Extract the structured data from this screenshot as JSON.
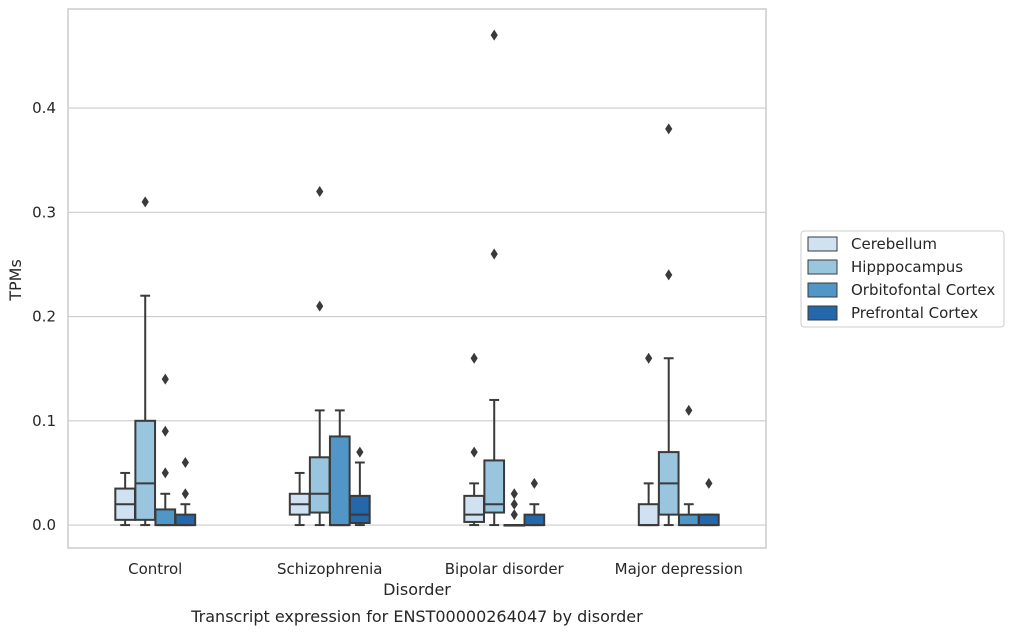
{
  "caption": "Transcript expression for ENST00000264047 by disorder",
  "chart_data": {
    "type": "box",
    "xlabel": "Disorder",
    "ylabel": "TPMs",
    "ylim": [
      -0.022,
      0.495
    ],
    "yticks": [
      0.0,
      0.1,
      0.2,
      0.3,
      0.4
    ],
    "ytick_labels": [
      "0.0",
      "0.1",
      "0.2",
      "0.3",
      "0.4"
    ],
    "grid": "horizontal",
    "legend_position": "outside right",
    "categories": [
      "Control",
      "Schizophrenia",
      "Bipolar disorder",
      "Major depression"
    ],
    "series": [
      {
        "name": "Cerebellum",
        "color": "#d0e1f2",
        "boxes": [
          {
            "whislo": 0.0,
            "q1": 0.005,
            "med": 0.02,
            "q3": 0.035,
            "whishi": 0.05,
            "fliers": []
          },
          {
            "whislo": 0.0,
            "q1": 0.01,
            "med": 0.02,
            "q3": 0.03,
            "whishi": 0.05,
            "fliers": []
          },
          {
            "whislo": 0.0,
            "q1": 0.003,
            "med": 0.01,
            "q3": 0.028,
            "whishi": 0.04,
            "fliers": [
              0.07,
              0.16
            ]
          },
          {
            "whislo": 0.0,
            "q1": 0.0,
            "med": 0.0,
            "q3": 0.02,
            "whishi": 0.04,
            "fliers": [
              0.16
            ]
          }
        ]
      },
      {
        "name": "Hipppocampus",
        "color": "#9ac5df",
        "boxes": [
          {
            "whislo": 0.0,
            "q1": 0.005,
            "med": 0.04,
            "q3": 0.1,
            "whishi": 0.22,
            "fliers": [
              0.31
            ]
          },
          {
            "whislo": 0.0,
            "q1": 0.012,
            "med": 0.03,
            "q3": 0.065,
            "whishi": 0.11,
            "fliers": [
              0.21,
              0.32
            ]
          },
          {
            "whislo": 0.0,
            "q1": 0.012,
            "med": 0.02,
            "q3": 0.062,
            "whishi": 0.12,
            "fliers": [
              0.26,
              0.47
            ]
          },
          {
            "whislo": 0.0,
            "q1": 0.01,
            "med": 0.04,
            "q3": 0.07,
            "whishi": 0.16,
            "fliers": [
              0.24,
              0.38
            ]
          }
        ]
      },
      {
        "name": "Orbitofontal Cortex",
        "color": "#5096c6",
        "boxes": [
          {
            "whislo": 0.0,
            "q1": 0.0,
            "med": 0.0,
            "q3": 0.015,
            "whishi": 0.03,
            "fliers": [
              0.05,
              0.09,
              0.14
            ]
          },
          {
            "whislo": 0.0,
            "q1": 0.0,
            "med": 0.0,
            "q3": 0.085,
            "whishi": 0.11,
            "fliers": []
          },
          {
            "whislo": 0.0,
            "q1": 0.0,
            "med": 0.0,
            "q3": 0.0,
            "whishi": 0.0,
            "fliers": [
              0.01,
              0.02,
              0.03
            ]
          },
          {
            "whislo": 0.0,
            "q1": 0.0,
            "med": 0.0,
            "q3": 0.01,
            "whishi": 0.02,
            "fliers": [
              0.11
            ]
          }
        ]
      },
      {
        "name": "Prefrontal Cortex",
        "color": "#2567ab",
        "boxes": [
          {
            "whislo": 0.0,
            "q1": 0.0,
            "med": 0.0,
            "q3": 0.01,
            "whishi": 0.02,
            "fliers": [
              0.03,
              0.06
            ]
          },
          {
            "whislo": 0.0,
            "q1": 0.002,
            "med": 0.01,
            "q3": 0.028,
            "whishi": 0.06,
            "fliers": [
              0.07
            ]
          },
          {
            "whislo": 0.0,
            "q1": 0.0,
            "med": 0.0,
            "q3": 0.01,
            "whishi": 0.02,
            "fliers": [
              0.04
            ]
          },
          {
            "whislo": 0.0,
            "q1": 0.0,
            "med": 0.0,
            "q3": 0.01,
            "whishi": 0.01,
            "fliers": [
              0.04
            ]
          }
        ]
      }
    ]
  }
}
